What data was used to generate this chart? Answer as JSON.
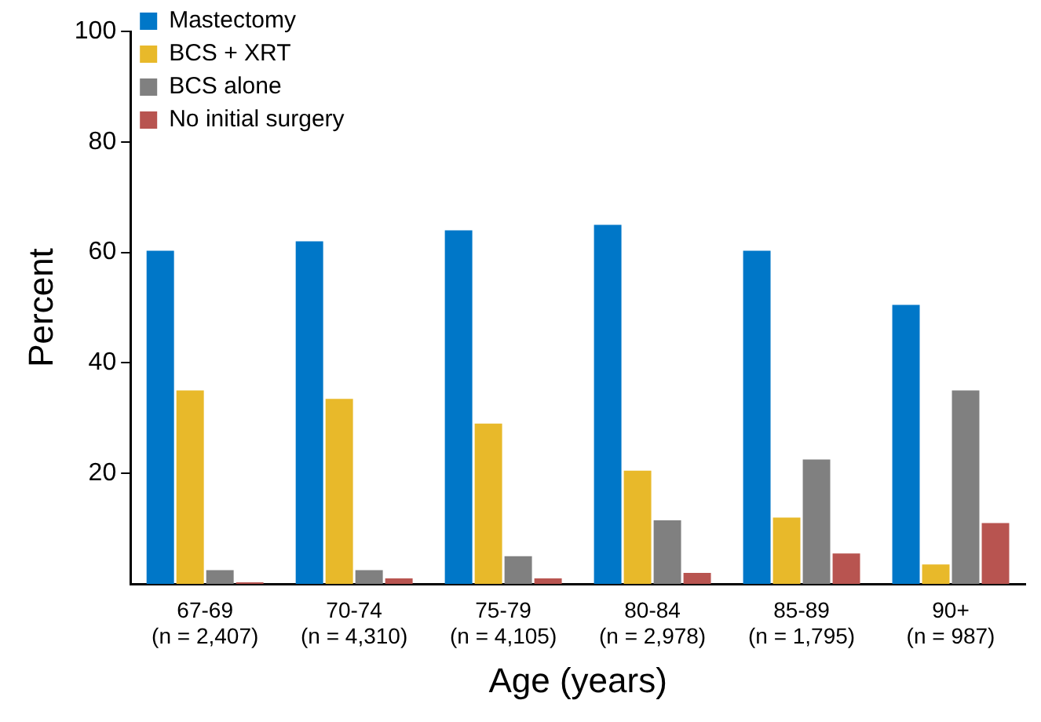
{
  "chart_data": {
    "type": "bar",
    "xlabel": "Age (years)",
    "ylabel": "Percent",
    "categories": [
      "67-69\n(n = 2,407)",
      "70-74\n(n = 4,310)",
      "75-79\n(n = 4,105)",
      "80-84\n(n = 2,978)",
      "85-89\n(n = 1,795)",
      "90+\n(n = 987)"
    ],
    "series": [
      {
        "name": "Mastectomy",
        "color": "#0077c8",
        "values": [
          60.3,
          62,
          64,
          65,
          60.3,
          50.5
        ]
      },
      {
        "name": "BCS + XRT",
        "color": "#e8b92a",
        "values": [
          35,
          33.5,
          29,
          20.5,
          12,
          3.5
        ]
      },
      {
        "name": "BCS alone",
        "color": "#808080",
        "values": [
          2.5,
          2.5,
          5,
          11.5,
          22.5,
          35
        ]
      },
      {
        "name": "No initial surgery",
        "color": "#b85450",
        "values": [
          0.3,
          1,
          1,
          2,
          5.5,
          11
        ]
      }
    ],
    "ylim": [
      0,
      100
    ],
    "yticks": [
      20,
      40,
      60,
      80,
      100
    ],
    "grid": false,
    "legend": "top left"
  }
}
